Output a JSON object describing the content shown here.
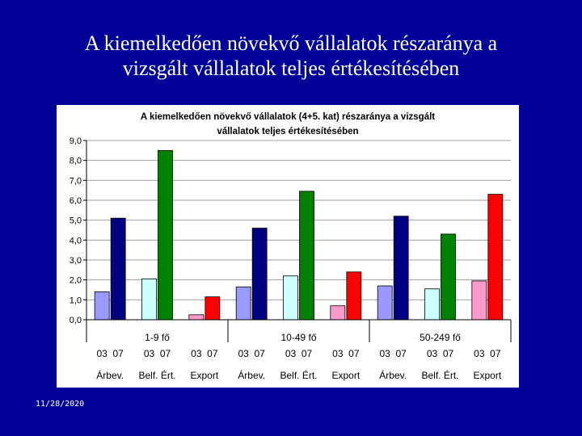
{
  "slide": {
    "title_line1": "A kiemelkedően növekvő vállalatok részaránya a",
    "title_line2": "vizsgált vállalatok teljes értékesítésében",
    "date": "11/28/2020"
  },
  "chart_data": {
    "type": "bar",
    "title_line1": "A kiemelkedően növekvő vállalatok (4+5. kat) részaránya a vizsgált",
    "title_line2": "vállalatok teljes értékesítésében",
    "xlabel": "",
    "ylabel": "",
    "ylim": [
      0,
      9
    ],
    "y_ticks": [
      "0,0",
      "1,0",
      "2,0",
      "3,0",
      "4,0",
      "5,0",
      "6,0",
      "7,0",
      "8,0",
      "9,0"
    ],
    "grid": true,
    "legend": "none",
    "groups": [
      "1-9 fő",
      "10-49 fő",
      "50-249 fő"
    ],
    "subgroups": [
      "Árbev.",
      "Belf. Ért.",
      "Export"
    ],
    "years": [
      "03",
      "07"
    ],
    "colors": {
      "Árbev.": [
        "#9999ff",
        "#000080"
      ],
      "Belf. Ért.": [
        "#ccffff",
        "#008000"
      ],
      "Export": [
        "#ff99cc",
        "#ff0000"
      ]
    },
    "bars": [
      {
        "group": "1-9 fő",
        "subgroup": "Árbev.",
        "year": "03",
        "value": 1.4
      },
      {
        "group": "1-9 fő",
        "subgroup": "Árbev.",
        "year": "07",
        "value": 5.1
      },
      {
        "group": "1-9 fő",
        "subgroup": "Belf. Ért.",
        "year": "03",
        "value": 2.05
      },
      {
        "group": "1-9 fő",
        "subgroup": "Belf. Ért.",
        "year": "07",
        "value": 8.5
      },
      {
        "group": "1-9 fő",
        "subgroup": "Export",
        "year": "03",
        "value": 0.25
      },
      {
        "group": "1-9 fő",
        "subgroup": "Export",
        "year": "07",
        "value": 1.15
      },
      {
        "group": "10-49 fő",
        "subgroup": "Árbev.",
        "year": "03",
        "value": 1.65
      },
      {
        "group": "10-49 fő",
        "subgroup": "Árbev.",
        "year": "07",
        "value": 4.6
      },
      {
        "group": "10-49 fő",
        "subgroup": "Belf. Ért.",
        "year": "03",
        "value": 2.2
      },
      {
        "group": "10-49 fő",
        "subgroup": "Belf. Ért.",
        "year": "07",
        "value": 6.45
      },
      {
        "group": "10-49 fő",
        "subgroup": "Export",
        "year": "03",
        "value": 0.7
      },
      {
        "group": "10-49 fő",
        "subgroup": "Export",
        "year": "07",
        "value": 2.4
      },
      {
        "group": "50-249 fő",
        "subgroup": "Árbev.",
        "year": "03",
        "value": 1.7
      },
      {
        "group": "50-249 fő",
        "subgroup": "Árbev.",
        "year": "07",
        "value": 5.2
      },
      {
        "group": "50-249 fő",
        "subgroup": "Belf. Ért.",
        "year": "03",
        "value": 1.55
      },
      {
        "group": "50-249 fő",
        "subgroup": "Belf. Ért.",
        "year": "07",
        "value": 4.3
      },
      {
        "group": "50-249 fő",
        "subgroup": "Export",
        "year": "03",
        "value": 1.95
      },
      {
        "group": "50-249 fő",
        "subgroup": "Export",
        "year": "07",
        "value": 6.3
      }
    ]
  }
}
